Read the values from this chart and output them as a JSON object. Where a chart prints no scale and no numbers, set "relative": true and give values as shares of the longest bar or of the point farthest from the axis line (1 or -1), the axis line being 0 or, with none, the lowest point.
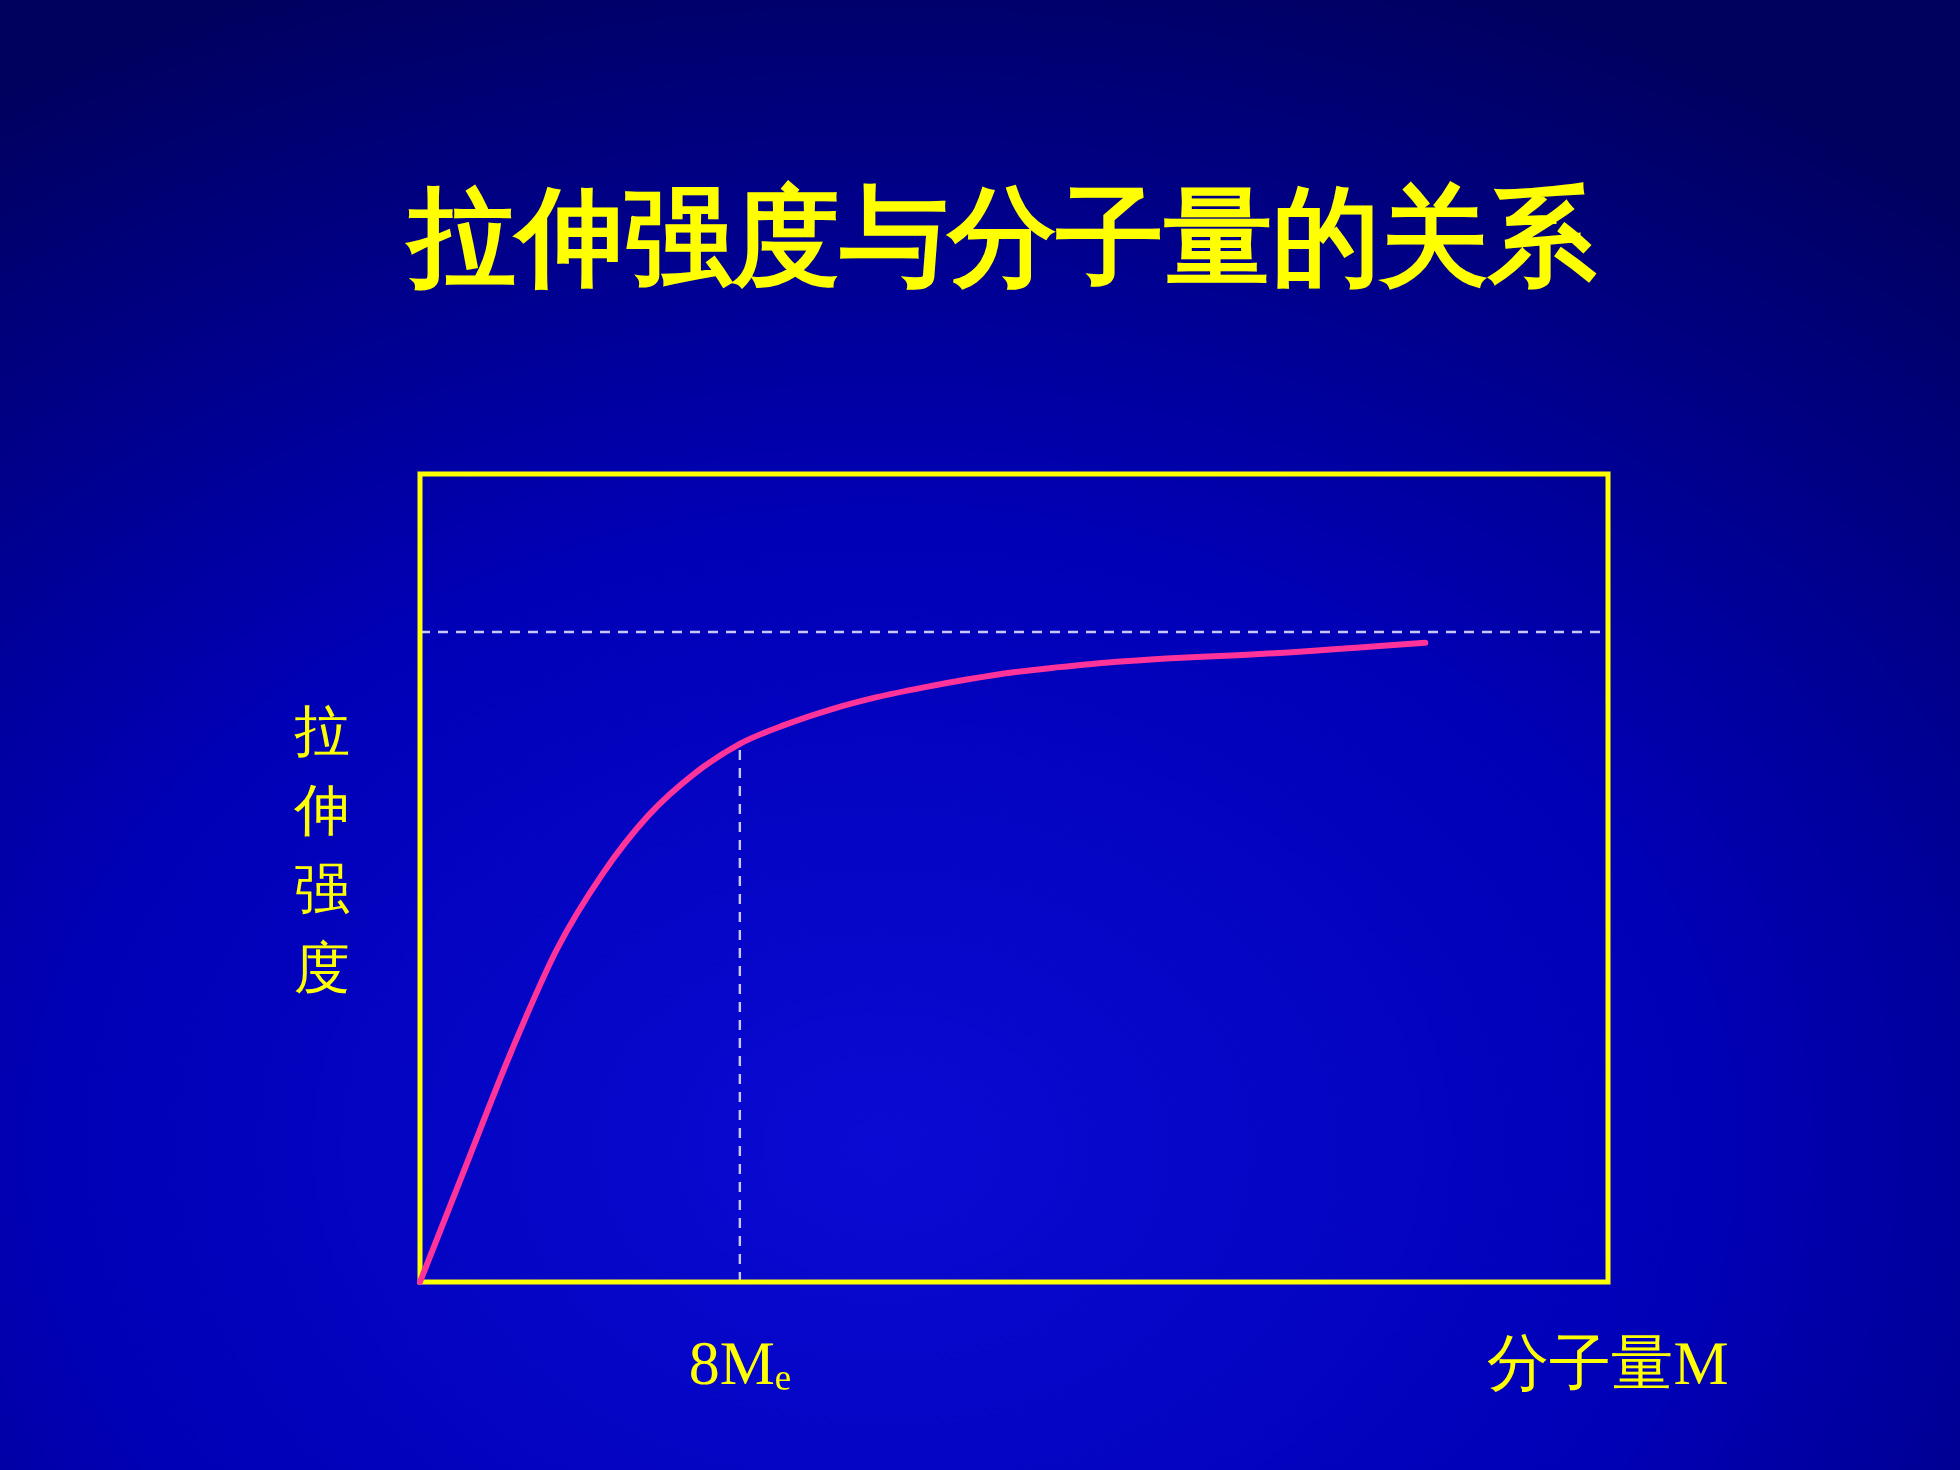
{
  "chart_data": {
    "type": "line",
    "title": "拉伸强度与分子量的关系",
    "xlabel": "分子量M",
    "ylabel": "拉伸强度",
    "relative": true,
    "categories": [
      null,
      null,
      null,
      null,
      null,
      null,
      null,
      null,
      null,
      null,
      null,
      null,
      null,
      null,
      null,
      null,
      null,
      null,
      null,
      null,
      null,
      null,
      null,
      null,
      null,
      null,
      null
    ],
    "series": [
      {
        "color": "#ff3399",
        "values": [
          0,
          0.181,
          0.361,
          0.521,
          0.639,
          0.73,
          0.795,
          0.842,
          0.872,
          0.896,
          0.915,
          0.93,
          0.943,
          0.954,
          0.962,
          0.969,
          0.974,
          0.978,
          0.981,
          0.985,
          0.99,
          0.995,
          1,
          null,
          null,
          null,
          null
        ]
      }
    ],
    "ref_lines": [
      {
        "axis": "y",
        "value": 1.017,
        "line_style": "dashed",
        "color": "#c8c8ff"
      }
    ],
    "annotations": [
      {
        "text": "8Mₑ",
        "y": 0.842
      }
    ]
  }
}
